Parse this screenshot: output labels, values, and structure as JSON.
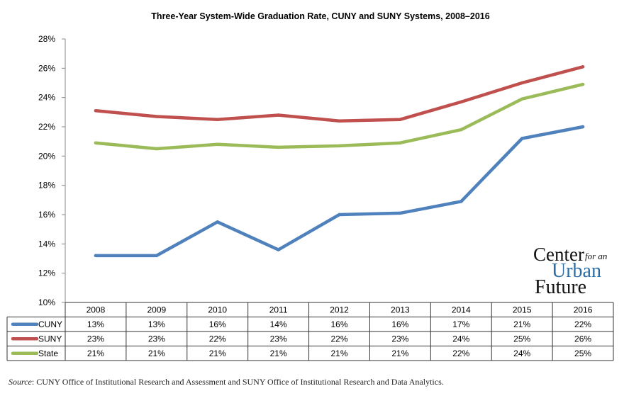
{
  "chart_data": {
    "type": "line",
    "title": "Three-Year System-Wide Graduation Rate, CUNY and SUNY Systems, 2008–2016",
    "categories": [
      "2008",
      "2009",
      "2010",
      "2011",
      "2012",
      "2013",
      "2014",
      "2015",
      "2016"
    ],
    "ylim": [
      10,
      28
    ],
    "yticks": [
      10,
      12,
      14,
      16,
      18,
      20,
      22,
      24,
      26,
      28
    ],
    "ytick_labels": [
      "10%",
      "12%",
      "14%",
      "16%",
      "18%",
      "20%",
      "22%",
      "24%",
      "26%",
      "28%"
    ],
    "xlabel": "",
    "ylabel": "",
    "legend": "data-table",
    "grid": false,
    "series": [
      {
        "name": "CUNY",
        "color": "#4f81bd",
        "values": [
          13.2,
          13.2,
          15.5,
          13.6,
          16.0,
          16.1,
          16.9,
          21.2,
          22.0
        ],
        "labels": [
          "13%",
          "13%",
          "16%",
          "14%",
          "16%",
          "16%",
          "17%",
          "21%",
          "22%"
        ]
      },
      {
        "name": "SUNY",
        "color": "#c0504d",
        "values": [
          23.1,
          22.7,
          22.5,
          22.8,
          22.4,
          22.5,
          23.7,
          25.0,
          26.1
        ],
        "labels": [
          "23%",
          "23%",
          "22%",
          "23%",
          "22%",
          "23%",
          "24%",
          "25%",
          "26%"
        ]
      },
      {
        "name": "State",
        "color": "#9bbb59",
        "values": [
          20.9,
          20.5,
          20.8,
          20.6,
          20.7,
          20.9,
          21.8,
          23.9,
          24.9
        ],
        "labels": [
          "21%",
          "21%",
          "21%",
          "21%",
          "21%",
          "21%",
          "22%",
          "24%",
          "25%"
        ]
      }
    ]
  },
  "logo": {
    "line1": "Center",
    "line1_small": "for an",
    "line2": "Urban",
    "line3": "Future"
  },
  "source": {
    "label": "Source",
    "text": ": CUNY Office of Institutional Research and Assessment and SUNY Office of Institutional Research and Data Analytics."
  }
}
